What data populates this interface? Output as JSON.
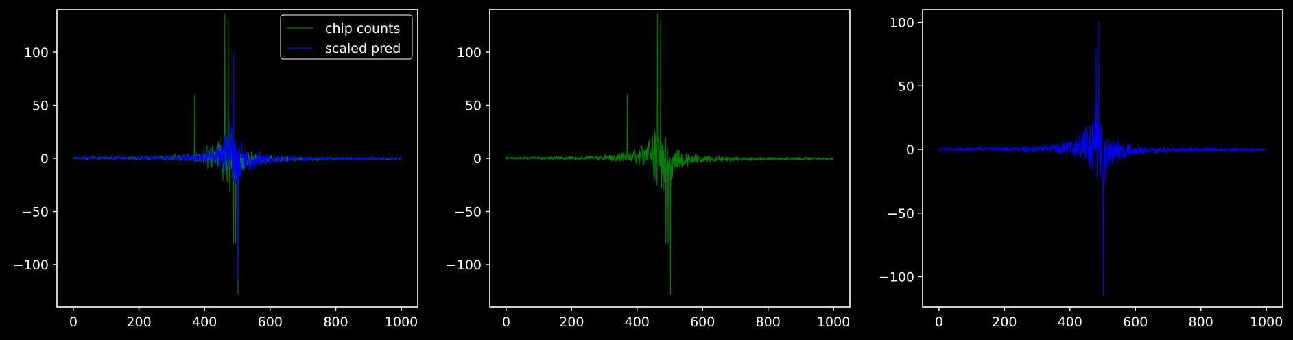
{
  "colors": {
    "background": "#000000",
    "axes": "#ffffff",
    "chip_counts": "#008000",
    "scaled_pred": "#0000ff"
  },
  "chart_data": [
    {
      "type": "line",
      "xlim": [
        -50,
        1050
      ],
      "ylim": [
        -140,
        140
      ],
      "x_ticks": [
        0,
        200,
        400,
        600,
        800,
        1000
      ],
      "y_ticks": [
        -100,
        -50,
        0,
        50,
        100
      ],
      "legend": {
        "position": "top-right",
        "entries": [
          "chip counts",
          "scaled pred"
        ]
      },
      "series": [
        {
          "name": "chip counts",
          "color": "#008000",
          "n_points": 1000,
          "peak_x": 470,
          "max": 136,
          "min": -128,
          "spikes": [
            [
              370,
              60
            ],
            [
              462,
              136
            ],
            [
              472,
              130
            ],
            [
              488,
              -80
            ],
            [
              495,
              -80
            ],
            [
              502,
              -128
            ]
          ]
        },
        {
          "name": "scaled pred",
          "color": "#0000ff",
          "n_points": 1000,
          "peak_x": 485,
          "max": 100,
          "min": -115,
          "spikes": [
            [
              488,
              100
            ],
            [
              502,
              -115
            ]
          ]
        }
      ]
    },
    {
      "type": "line",
      "xlim": [
        -50,
        1050
      ],
      "ylim": [
        -140,
        140
      ],
      "x_ticks": [
        0,
        200,
        400,
        600,
        800,
        1000
      ],
      "y_ticks": [
        -100,
        -50,
        0,
        50,
        100
      ],
      "series": [
        {
          "color": "#008000",
          "n_points": 1000,
          "peak_x": 470,
          "max": 136,
          "min": -128,
          "spikes": [
            [
              370,
              60
            ],
            [
              462,
              136
            ],
            [
              472,
              130
            ],
            [
              488,
              -80
            ],
            [
              495,
              -80
            ],
            [
              502,
              -128
            ]
          ]
        }
      ]
    },
    {
      "type": "line",
      "xlim": [
        -50,
        1050
      ],
      "ylim": [
        -124,
        110
      ],
      "x_ticks": [
        0,
        200,
        400,
        600,
        800,
        1000
      ],
      "y_ticks": [
        -100,
        -50,
        0,
        50,
        100
      ],
      "series": [
        {
          "color": "#0000ff",
          "n_points": 1000,
          "peak_x": 485,
          "max": 100,
          "min": -115,
          "spikes": [
            [
              488,
              100
            ],
            [
              480,
              80
            ],
            [
              502,
              -115
            ]
          ]
        }
      ]
    }
  ]
}
